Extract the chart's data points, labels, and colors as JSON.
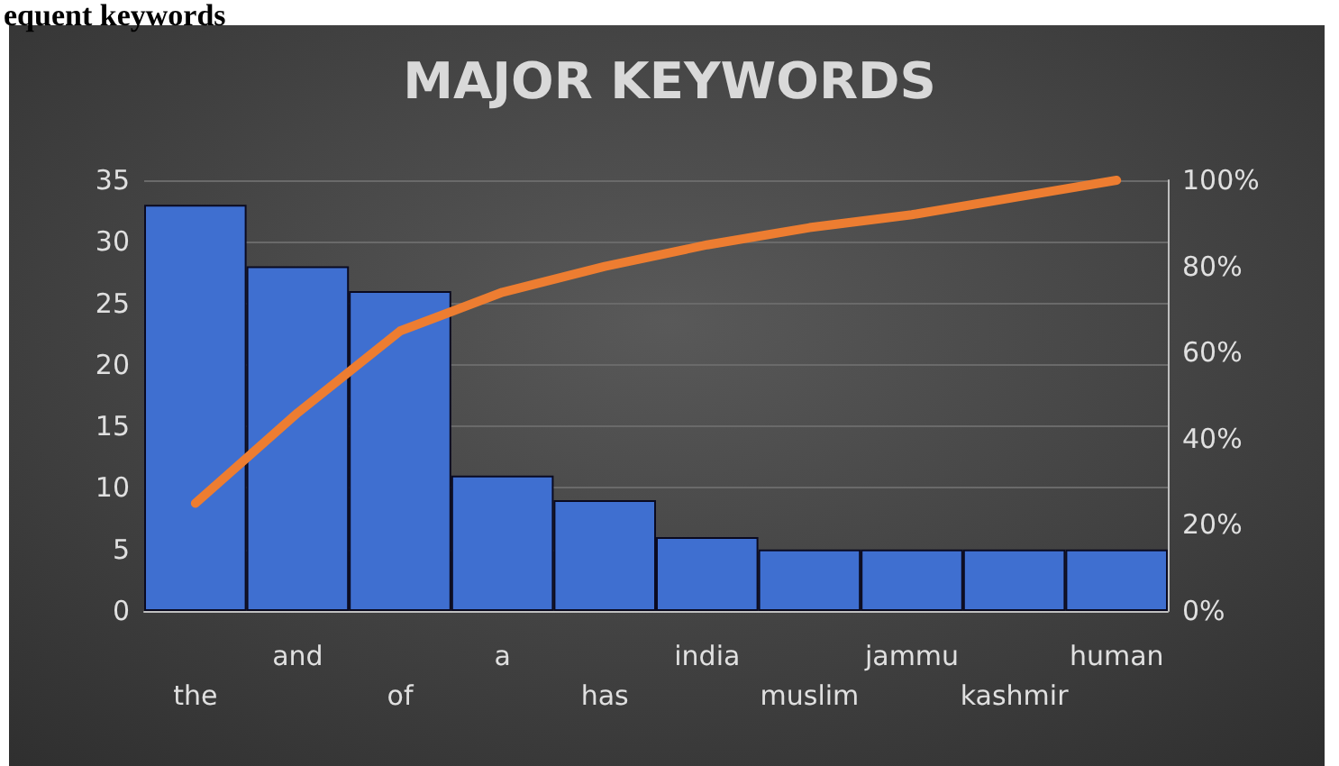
{
  "chart_data": {
    "type": "bar",
    "title": "MAJOR KEYWORDS",
    "annotations": [
      "equent keywords"
    ],
    "categories": [
      "the",
      "and",
      "of",
      "a",
      "has",
      "india",
      "muslim",
      "jammu",
      "kashmir",
      "human"
    ],
    "series": [
      {
        "color": "#3f6fd0",
        "values": [
          33,
          28,
          26,
          11,
          9,
          6,
          5,
          5,
          5,
          5
        ]
      },
      {
        "type": "line",
        "axis": "y2",
        "color": "#ed7d31",
        "values": [
          25,
          46,
          65,
          74,
          80,
          85,
          89,
          92,
          96,
          100
        ]
      }
    ],
    "ylim": [
      0,
      35
    ],
    "yticks": [
      0,
      5,
      10,
      15,
      20,
      25,
      30,
      35
    ],
    "y2lim": [
      0,
      100
    ],
    "y2ticks": [
      {
        "value": 0,
        "label": "0%"
      },
      {
        "value": 20,
        "label": "20%"
      },
      {
        "value": 40,
        "label": "40%"
      },
      {
        "value": 60,
        "label": "60%"
      },
      {
        "value": 80,
        "label": "80%"
      },
      {
        "value": 100,
        "label": "100%"
      }
    ],
    "grid": "y",
    "marker": "none",
    "line_style": "solid"
  }
}
